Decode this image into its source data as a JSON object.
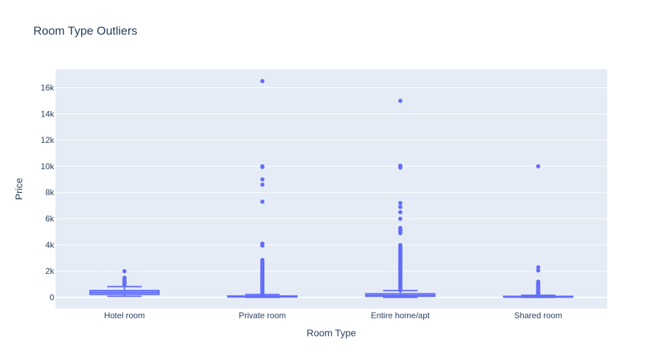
{
  "chart_data": {
    "type": "box",
    "title": "Room Type Outliers",
    "xlabel": "Room Type",
    "ylabel": "Price",
    "categories": [
      "Hotel room",
      "Private room",
      "Entire home/apt",
      "Shared room"
    ],
    "ylim": [
      -850,
      17400
    ],
    "y_ticks": [
      0,
      2000,
      4000,
      6000,
      8000,
      10000,
      12000,
      14000,
      16000
    ],
    "y_tick_labels": [
      "0",
      "2k",
      "4k",
      "6k",
      "8k",
      "10k",
      "12k",
      "14k",
      "16k"
    ],
    "grid": true,
    "color": "#636efa",
    "plot_bg": "#e5ecf6",
    "boxes": [
      {
        "category": "Hotel room",
        "min": 80,
        "q1": 230,
        "median": 370,
        "q3": 520,
        "max": 820,
        "outliers": [
          900,
          980,
          1050,
          1100,
          1150,
          1200,
          1300,
          1400,
          1500,
          2000
        ]
      },
      {
        "category": "Private room",
        "min": 0,
        "q1": 30,
        "median": 55,
        "q3": 110,
        "max": 220,
        "outliers": [
          240,
          300,
          380,
          460,
          540,
          620,
          700,
          780,
          860,
          940,
          1020,
          1100,
          1180,
          1260,
          1340,
          1420,
          1500,
          1580,
          1660,
          1740,
          1820,
          1900,
          1980,
          2060,
          2140,
          2220,
          2300,
          2380,
          2460,
          2540,
          2620,
          2700,
          2780,
          2850,
          3950,
          4050,
          4100,
          7300,
          8600,
          9000,
          9950,
          10000,
          16500
        ]
      },
      {
        "category": "Entire home/apt",
        "min": 0,
        "q1": 80,
        "median": 150,
        "q3": 280,
        "max": 520,
        "outliers": [
          550,
          630,
          710,
          790,
          870,
          950,
          1030,
          1110,
          1190,
          1270,
          1350,
          1430,
          1510,
          1590,
          1670,
          1750,
          1830,
          1910,
          1990,
          2070,
          2150,
          2230,
          2310,
          2390,
          2470,
          2550,
          2630,
          2710,
          2790,
          2870,
          2950,
          3030,
          3110,
          3190,
          3270,
          3350,
          3430,
          3510,
          3590,
          3670,
          3750,
          3830,
          3910,
          3990,
          4900,
          5000,
          5100,
          5200,
          5300,
          6000,
          6500,
          6900,
          7200,
          9900,
          10000,
          10050,
          15000
        ]
      },
      {
        "category": "Shared room",
        "min": 0,
        "q1": 20,
        "median": 40,
        "q3": 80,
        "max": 160,
        "outliers": [
          200,
          260,
          320,
          380,
          440,
          500,
          560,
          620,
          680,
          740,
          800,
          860,
          920,
          980,
          1040,
          1100,
          1200,
          2050,
          2300,
          10000
        ]
      }
    ]
  }
}
